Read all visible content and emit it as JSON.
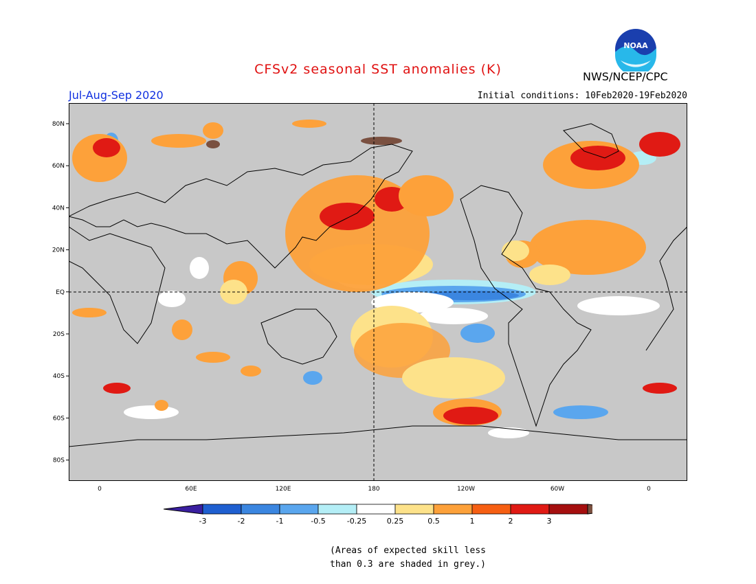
{
  "header": {
    "title": "CFSv2 seasonal SST anomalies (K)",
    "period": "Jul-Aug-Sep 2020",
    "agency": "NWS/NCEP/CPC",
    "logo_text": "NOAA",
    "initial_conditions": "Initial conditions: 10Feb2020-19Feb2020",
    "title_color": "#e01010",
    "period_color": "#1030e0"
  },
  "map": {
    "land_color": "#c8c8c8",
    "lat_ticks": [
      "80N",
      "60N",
      "40N",
      "20N",
      "EQ",
      "20S",
      "40S",
      "60S",
      "80S"
    ],
    "lon_ticks": [
      "0",
      "60E",
      "120E",
      "180",
      "120W",
      "60W",
      "0"
    ]
  },
  "colorbar": {
    "labels": [
      "-3",
      "-2",
      "-1",
      "-0.5",
      "-0.25",
      "0.25",
      "0.5",
      "1",
      "2",
      "3"
    ],
    "colors": [
      "#3a1fa0",
      "#1f5fd0",
      "#3b86e0",
      "#5aa6ee",
      "#b4eef6",
      "#ffffff",
      "#fde28a",
      "#fda13a",
      "#f65f13",
      "#e01a14",
      "#a50f0f",
      "#7a5040"
    ]
  },
  "footnote": {
    "line1": "(Areas of expected skill less",
    "line2": "than 0.3 are shaded in grey.)"
  }
}
